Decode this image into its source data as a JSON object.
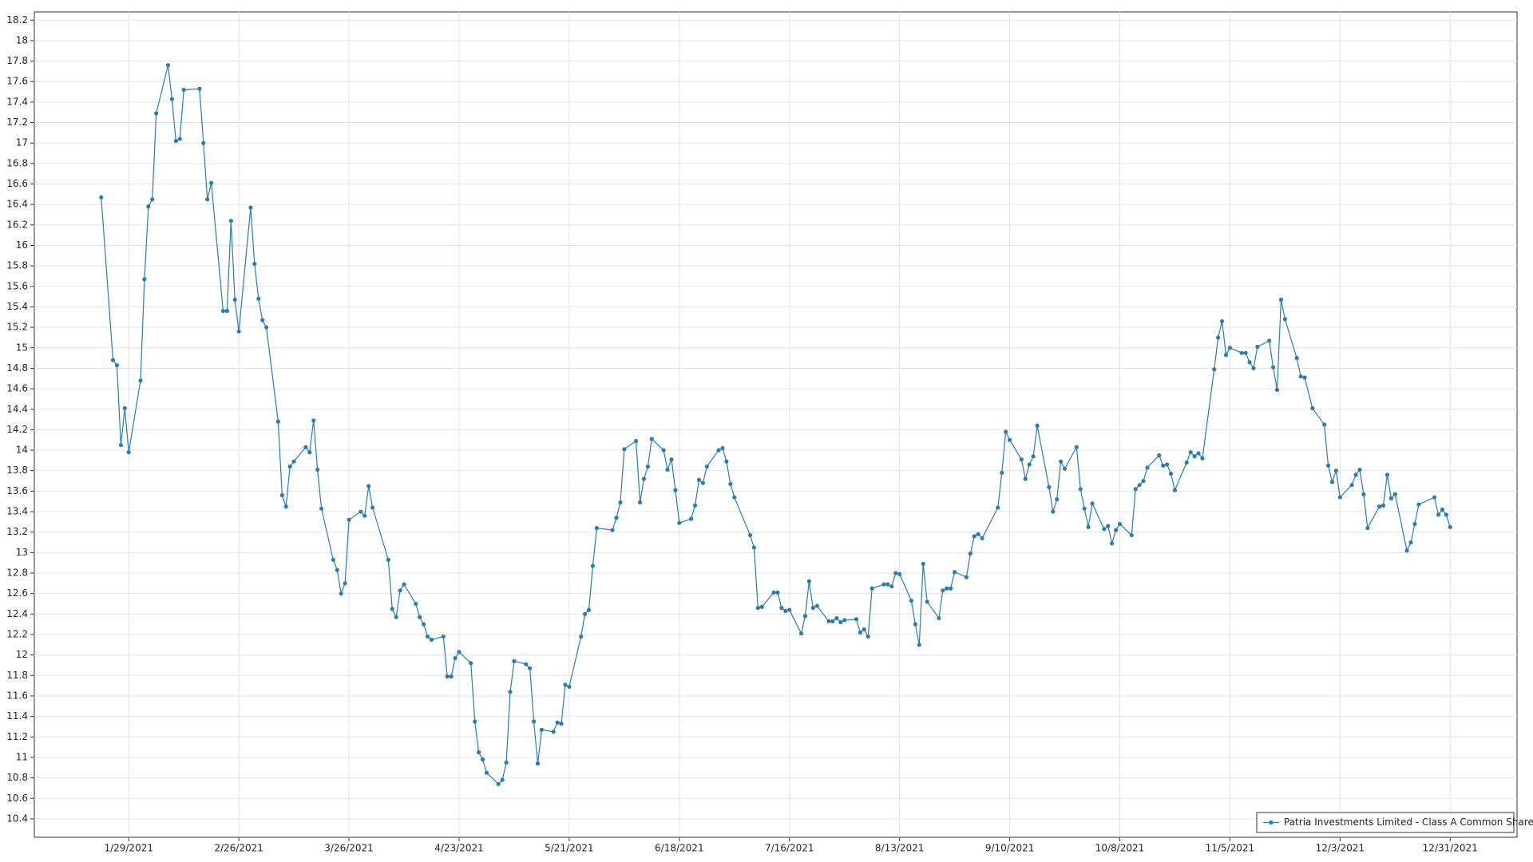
{
  "chart_data": {
    "type": "line",
    "x": [
      "1/22/2021",
      "1/25/2021",
      "1/26/2021",
      "1/27/2021",
      "1/28/2021",
      "1/29/2021",
      "2/1/2021",
      "2/2/2021",
      "2/3/2021",
      "2/4/2021",
      "2/5/2021",
      "2/8/2021",
      "2/9/2021",
      "2/10/2021",
      "2/11/2021",
      "2/12/2021",
      "2/16/2021",
      "2/17/2021",
      "2/18/2021",
      "2/19/2021",
      "2/22/2021",
      "2/23/2021",
      "2/24/2021",
      "2/25/2021",
      "2/26/2021",
      "3/1/2021",
      "3/2/2021",
      "3/3/2021",
      "3/4/2021",
      "3/5/2021",
      "3/8/2021",
      "3/9/2021",
      "3/10/2021",
      "3/11/2021",
      "3/12/2021",
      "3/15/2021",
      "3/16/2021",
      "3/17/2021",
      "3/18/2021",
      "3/19/2021",
      "3/22/2021",
      "3/23/2021",
      "3/24/2021",
      "3/25/2021",
      "3/26/2021",
      "3/29/2021",
      "3/30/2021",
      "3/31/2021",
      "4/1/2021",
      "4/5/2021",
      "4/6/2021",
      "4/7/2021",
      "4/8/2021",
      "4/9/2021",
      "4/12/2021",
      "4/13/2021",
      "4/14/2021",
      "4/15/2021",
      "4/16/2021",
      "4/19/2021",
      "4/20/2021",
      "4/21/2021",
      "4/22/2021",
      "4/23/2021",
      "4/26/2021",
      "4/27/2021",
      "4/28/2021",
      "4/29/2021",
      "4/30/2021",
      "5/3/2021",
      "5/4/2021",
      "5/5/2021",
      "5/6/2021",
      "5/7/2021",
      "5/10/2021",
      "5/11/2021",
      "5/12/2021",
      "5/13/2021",
      "5/14/2021",
      "5/17/2021",
      "5/18/2021",
      "5/19/2021",
      "5/20/2021",
      "5/21/2021",
      "5/24/2021",
      "5/25/2021",
      "5/26/2021",
      "5/27/2021",
      "5/28/2021",
      "6/1/2021",
      "6/2/2021",
      "6/3/2021",
      "6/4/2021",
      "6/7/2021",
      "6/8/2021",
      "6/9/2021",
      "6/10/2021",
      "6/11/2021",
      "6/14/2021",
      "6/15/2021",
      "6/16/2021",
      "6/17/2021",
      "6/18/2021",
      "6/21/2021",
      "6/22/2021",
      "6/23/2021",
      "6/24/2021",
      "6/25/2021",
      "6/28/2021",
      "6/29/2021",
      "6/30/2021",
      "7/1/2021",
      "7/2/2021",
      "7/6/2021",
      "7/7/2021",
      "7/8/2021",
      "7/9/2021",
      "7/12/2021",
      "7/13/2021",
      "7/14/2021",
      "7/15/2021",
      "7/16/2021",
      "7/19/2021",
      "7/20/2021",
      "7/21/2021",
      "7/22/2021",
      "7/23/2021",
      "7/26/2021",
      "7/27/2021",
      "7/28/2021",
      "7/29/2021",
      "7/30/2021",
      "8/2/2021",
      "8/3/2021",
      "8/4/2021",
      "8/5/2021",
      "8/6/2021",
      "8/9/2021",
      "8/10/2021",
      "8/11/2021",
      "8/12/2021",
      "8/13/2021",
      "8/16/2021",
      "8/17/2021",
      "8/18/2021",
      "8/19/2021",
      "8/20/2021",
      "8/23/2021",
      "8/24/2021",
      "8/25/2021",
      "8/26/2021",
      "8/27/2021",
      "8/30/2021",
      "8/31/2021",
      "9/1/2021",
      "9/2/2021",
      "9/3/2021",
      "9/7/2021",
      "9/8/2021",
      "9/9/2021",
      "9/10/2021",
      "9/13/2021",
      "9/14/2021",
      "9/15/2021",
      "9/16/2021",
      "9/17/2021",
      "9/20/2021",
      "9/21/2021",
      "9/22/2021",
      "9/23/2021",
      "9/24/2021",
      "9/27/2021",
      "9/28/2021",
      "9/29/2021",
      "9/30/2021",
      "10/1/2021",
      "10/4/2021",
      "10/5/2021",
      "10/6/2021",
      "10/7/2021",
      "10/8/2021",
      "10/11/2021",
      "10/12/2021",
      "10/13/2021",
      "10/14/2021",
      "10/15/2021",
      "10/18/2021",
      "10/19/2021",
      "10/20/2021",
      "10/21/2021",
      "10/22/2021",
      "10/25/2021",
      "10/26/2021",
      "10/27/2021",
      "10/28/2021",
      "10/29/2021",
      "11/1/2021",
      "11/2/2021",
      "11/3/2021",
      "11/4/2021",
      "11/5/2021",
      "11/8/2021",
      "11/9/2021",
      "11/10/2021",
      "11/11/2021",
      "11/12/2021",
      "11/15/2021",
      "11/16/2021",
      "11/17/2021",
      "11/18/2021",
      "11/19/2021",
      "11/22/2021",
      "11/23/2021",
      "11/24/2021",
      "11/26/2021",
      "11/29/2021",
      "11/30/2021",
      "12/1/2021",
      "12/2/2021",
      "12/3/2021",
      "12/6/2021",
      "12/7/2021",
      "12/8/2021",
      "12/9/2021",
      "12/10/2021",
      "12/13/2021",
      "12/14/2021",
      "12/15/2021",
      "12/16/2021",
      "12/17/2021",
      "12/20/2021",
      "12/21/2021",
      "12/22/2021",
      "12/23/2021",
      "12/27/2021",
      "12/28/2021",
      "12/29/2021",
      "12/30/2021",
      "12/31/2021"
    ],
    "series": [
      {
        "name": "Patria Investments Limited - Class A Common Shares",
        "color": "#2b7bb4",
        "values": [
          16.47,
          14.88,
          14.83,
          14.05,
          14.41,
          13.98,
          14.68,
          15.67,
          16.38,
          16.45,
          17.29,
          17.76,
          17.43,
          17.02,
          17.04,
          17.52,
          17.53,
          17.0,
          16.45,
          16.61,
          15.36,
          15.36,
          16.24,
          15.47,
          15.16,
          16.37,
          15.82,
          15.48,
          15.27,
          15.2,
          14.28,
          13.56,
          13.45,
          13.84,
          13.89,
          14.03,
          13.98,
          14.29,
          13.81,
          13.43,
          12.93,
          12.83,
          12.6,
          12.7,
          13.32,
          13.4,
          13.36,
          13.65,
          13.44,
          12.93,
          12.45,
          12.37,
          12.63,
          12.69,
          12.5,
          12.37,
          12.3,
          12.18,
          12.15,
          12.18,
          11.79,
          11.79,
          11.97,
          12.03,
          11.92,
          11.35,
          11.05,
          10.98,
          10.85,
          10.74,
          10.78,
          10.95,
          11.64,
          11.94,
          11.91,
          11.87,
          11.35,
          10.94,
          11.27,
          11.25,
          11.34,
          11.33,
          11.71,
          11.69,
          12.18,
          12.4,
          12.44,
          12.87,
          13.24,
          13.22,
          13.34,
          13.49,
          14.01,
          14.09,
          13.49,
          13.72,
          13.84,
          14.11,
          14.0,
          13.81,
          13.91,
          13.61,
          13.29,
          13.33,
          13.46,
          13.71,
          13.68,
          13.84,
          14.0,
          14.02,
          13.89,
          13.67,
          13.54,
          13.17,
          13.05,
          12.46,
          12.47,
          12.61,
          12.61,
          12.46,
          12.43,
          12.44,
          12.21,
          12.38,
          12.72,
          12.46,
          12.48,
          12.33,
          12.33,
          12.36,
          12.32,
          12.34,
          12.35,
          12.22,
          12.25,
          12.18,
          12.65,
          12.69,
          12.69,
          12.67,
          12.8,
          12.79,
          12.53,
          12.3,
          12.1,
          12.89,
          12.52,
          12.36,
          12.63,
          12.65,
          12.65,
          12.81,
          12.76,
          12.99,
          13.16,
          13.18,
          13.14,
          13.44,
          13.78,
          14.18,
          14.1,
          13.91,
          13.72,
          13.86,
          13.94,
          14.24,
          13.64,
          13.4,
          13.52,
          13.89,
          13.82,
          14.03,
          13.62,
          13.43,
          13.25,
          13.48,
          13.23,
          13.26,
          13.09,
          13.22,
          13.28,
          13.17,
          13.62,
          13.66,
          13.7,
          13.83,
          13.95,
          13.85,
          13.86,
          13.77,
          13.61,
          13.88,
          13.98,
          13.94,
          13.97,
          13.92,
          14.79,
          15.1,
          15.26,
          14.93,
          15.0,
          14.95,
          14.95,
          14.86,
          14.8,
          15.01,
          15.07,
          14.81,
          14.59,
          15.47,
          15.28,
          14.9,
          14.72,
          14.71,
          14.41,
          14.25,
          13.85,
          13.69,
          13.8,
          13.54,
          13.66,
          13.76,
          13.81,
          13.57,
          13.24,
          13.45,
          13.46,
          13.76,
          13.53,
          13.57,
          13.02,
          13.1,
          13.28,
          13.47,
          13.54,
          13.37,
          13.42,
          13.37,
          13.25
        ]
      }
    ],
    "xlim": [
      "1/5/2021",
      "1/17/2022"
    ],
    "xticks": [
      "1/29/2021",
      "2/26/2021",
      "3/26/2021",
      "4/23/2021",
      "5/21/2021",
      "6/18/2021",
      "7/16/2021",
      "8/13/2021",
      "9/10/2021",
      "10/8/2021",
      "11/5/2021",
      "12/3/2021",
      "12/31/2021"
    ],
    "ylim": [
      10.22,
      18.28
    ],
    "yticks": [
      10.4,
      10.6,
      10.8,
      11,
      11.2,
      11.4,
      11.6,
      11.8,
      12,
      12.2,
      12.4,
      12.6,
      12.8,
      13,
      13.2,
      13.4,
      13.6,
      13.8,
      14,
      14.2,
      14.4,
      14.6,
      14.8,
      15,
      15.2,
      15.4,
      15.6,
      15.8,
      16,
      16.2,
      16.4,
      16.6,
      16.8,
      17,
      17.2,
      17.4,
      17.6,
      17.8,
      18,
      18.2
    ],
    "grid": true,
    "legend": "lower right"
  }
}
